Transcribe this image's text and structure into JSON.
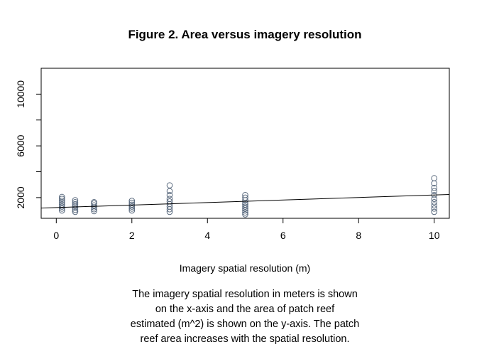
{
  "chart_data": {
    "type": "scatter",
    "title": "Figure 2. Area versus imagery resolution",
    "xlabel": "Imagery spatial resolution (m)",
    "ylabel": "",
    "xlim": [
      -0.4,
      10.4
    ],
    "ylim": [
      400,
      12000
    ],
    "x_ticks": [
      0,
      2,
      4,
      6,
      8,
      10
    ],
    "y_ticks": [
      2000,
      4000,
      6000,
      8000,
      10000
    ],
    "y_tick_labels": [
      {
        "value": 2000,
        "label": "2000"
      },
      {
        "value": 6000,
        "label": "6000"
      },
      {
        "value": 10000,
        "label": "10000"
      }
    ],
    "grid": false,
    "legend": "none",
    "marker_color": "#5a6a7e",
    "line_color": "#000000",
    "points": [
      {
        "x": 0.15,
        "y": 1000
      },
      {
        "x": 0.15,
        "y": 1150
      },
      {
        "x": 0.15,
        "y": 1300
      },
      {
        "x": 0.15,
        "y": 1450
      },
      {
        "x": 0.15,
        "y": 1600
      },
      {
        "x": 0.15,
        "y": 1750
      },
      {
        "x": 0.15,
        "y": 1900
      },
      {
        "x": 0.15,
        "y": 2050
      },
      {
        "x": 0.5,
        "y": 900
      },
      {
        "x": 0.5,
        "y": 1050
      },
      {
        "x": 0.5,
        "y": 1200
      },
      {
        "x": 0.5,
        "y": 1350
      },
      {
        "x": 0.5,
        "y": 1500
      },
      {
        "x": 0.5,
        "y": 1650
      },
      {
        "x": 0.5,
        "y": 1800
      },
      {
        "x": 1,
        "y": 950
      },
      {
        "x": 1,
        "y": 1100
      },
      {
        "x": 1,
        "y": 1250
      },
      {
        "x": 1,
        "y": 1400
      },
      {
        "x": 1,
        "y": 1550
      },
      {
        "x": 1,
        "y": 1650
      },
      {
        "x": 2,
        "y": 1000
      },
      {
        "x": 2,
        "y": 1150
      },
      {
        "x": 2,
        "y": 1300
      },
      {
        "x": 2,
        "y": 1450
      },
      {
        "x": 2,
        "y": 1600
      },
      {
        "x": 2,
        "y": 1750
      },
      {
        "x": 3,
        "y": 900
      },
      {
        "x": 3,
        "y": 1100
      },
      {
        "x": 3,
        "y": 1300
      },
      {
        "x": 3,
        "y": 1500
      },
      {
        "x": 3,
        "y": 1700
      },
      {
        "x": 3,
        "y": 1900
      },
      {
        "x": 3,
        "y": 2200
      },
      {
        "x": 3,
        "y": 2500
      },
      {
        "x": 3,
        "y": 2950
      },
      {
        "x": 5,
        "y": 700
      },
      {
        "x": 5,
        "y": 850
      },
      {
        "x": 5,
        "y": 1000
      },
      {
        "x": 5,
        "y": 1150
      },
      {
        "x": 5,
        "y": 1300
      },
      {
        "x": 5,
        "y": 1450
      },
      {
        "x": 5,
        "y": 1600
      },
      {
        "x": 5,
        "y": 1800
      },
      {
        "x": 5,
        "y": 2000
      },
      {
        "x": 5,
        "y": 2200
      },
      {
        "x": 10,
        "y": 900
      },
      {
        "x": 10,
        "y": 1150
      },
      {
        "x": 10,
        "y": 1400
      },
      {
        "x": 10,
        "y": 1650
      },
      {
        "x": 10,
        "y": 1900
      },
      {
        "x": 10,
        "y": 2200
      },
      {
        "x": 10,
        "y": 2500
      },
      {
        "x": 10,
        "y": 2750
      },
      {
        "x": 10,
        "y": 3100
      },
      {
        "x": 10,
        "y": 3500
      }
    ],
    "trend_line": {
      "x": [
        -0.4,
        10.4
      ],
      "y": [
        1190,
        2240
      ]
    }
  },
  "caption": [
    "The imagery spatial resolution in meters is shown",
    "on the x-axis and the area of patch reef",
    "estimated (m^2) is shown on the y-axis. The patch",
    "reef area increases with the spatial resolution."
  ]
}
